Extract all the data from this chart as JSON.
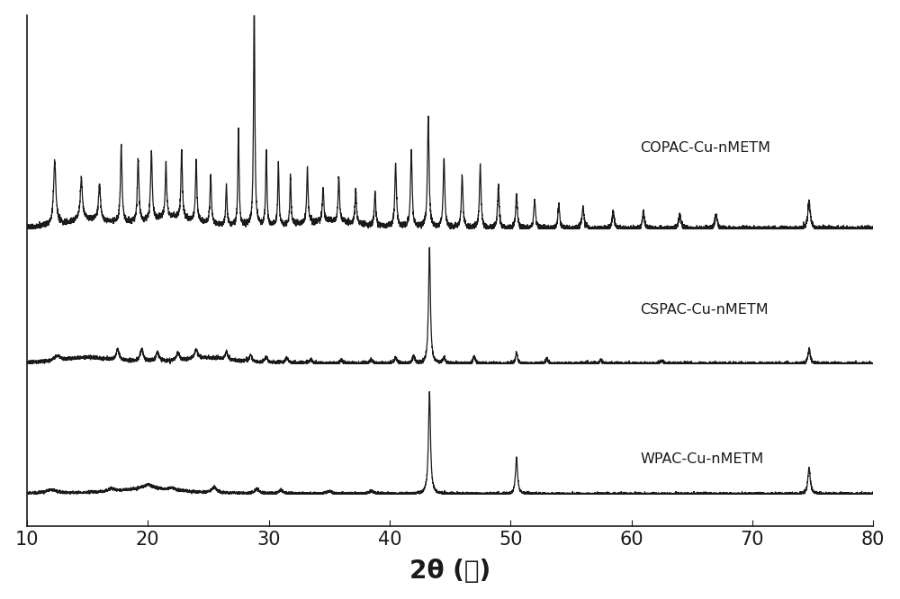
{
  "xlabel": "2θ (度)",
  "xlim": [
    10,
    80
  ],
  "xticks": [
    10,
    20,
    30,
    40,
    50,
    60,
    70,
    80
  ],
  "background_color": "#ffffff",
  "line_color": "#1a1a1a",
  "labels": [
    "COPAC-Cu-nMETM",
    "CSPAC-Cu-nMETM",
    "WPAC-Cu-nMETM"
  ],
  "offsets": [
    0.62,
    0.33,
    0.05
  ],
  "xlabel_fontsize": 20,
  "tick_fontsize": 15
}
